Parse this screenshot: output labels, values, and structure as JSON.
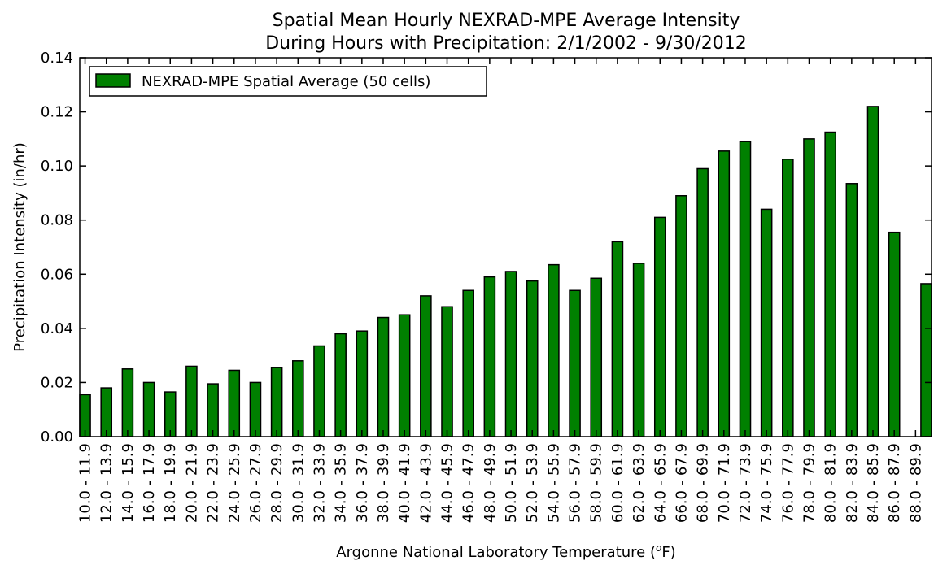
{
  "chart_data": {
    "type": "bar",
    "title": "Spatial Mean Hourly NEXRAD-MPE Average Intensity",
    "subtitle": "During Hours with Precipitation: 2/1/2002 - 9/30/2012",
    "xlabel_prefix": "Argonne National Laboratory Temperature (",
    "xlabel_sup": "o",
    "xlabel_suffix": "F)",
    "ylabel": "Precipitation Intensity (in/hr)",
    "ylim": [
      0,
      0.14
    ],
    "yticks": [
      "0.00",
      "0.02",
      "0.04",
      "0.06",
      "0.08",
      "0.10",
      "0.12",
      "0.14"
    ],
    "legend_position": "top-left",
    "bar_color": "#008000",
    "categories": [
      "10.0 - 11.9",
      "12.0 - 13.9",
      "14.0 - 15.9",
      "16.0 - 17.9",
      "18.0 - 19.9",
      "20.0 - 21.9",
      "22.0 - 23.9",
      "24.0 - 25.9",
      "26.0 - 27.9",
      "28.0 - 29.9",
      "30.0 - 31.9",
      "32.0 - 33.9",
      "34.0 - 35.9",
      "36.0 - 37.9",
      "38.0 - 39.9",
      "40.0 - 41.9",
      "42.0 - 43.9",
      "44.0 - 45.9",
      "46.0 - 47.9",
      "48.0 - 49.9",
      "50.0 - 51.9",
      "52.0 - 53.9",
      "54.0 - 55.9",
      "56.0 - 57.9",
      "58.0 - 59.9",
      "60.0 - 61.9",
      "62.0 - 63.9",
      "64.0 - 65.9",
      "66.0 - 67.9",
      "68.0 - 69.9",
      "70.0 - 71.9",
      "72.0 - 73.9",
      "74.0 - 75.9",
      "76.0 - 77.9",
      "78.0 - 79.9",
      "80.0 - 81.9",
      "82.0 - 83.9",
      "84.0 - 85.9",
      "86.0 - 87.9",
      "88.0 - 89.9"
    ],
    "series": [
      {
        "name": "NEXRAD-MPE Spatial Average (50 cells)",
        "values": [
          0.0155,
          0.018,
          0.025,
          0.02,
          0.0165,
          0.026,
          0.0195,
          0.0245,
          0.02,
          0.0255,
          0.028,
          0.0335,
          0.038,
          0.039,
          0.044,
          0.045,
          0.052,
          0.048,
          0.054,
          0.059,
          0.061,
          0.0575,
          0.0635,
          0.054,
          0.0585,
          0.072,
          0.064,
          0.081,
          0.089,
          0.099,
          0.1055,
          0.109,
          0.084,
          0.1025,
          0.11,
          0.1125,
          0.0935,
          0.122,
          0.0755,
          0.0565
        ]
      }
    ]
  }
}
